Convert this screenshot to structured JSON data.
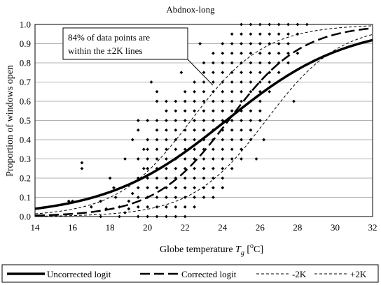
{
  "chart_data": {
    "type": "scatter",
    "title": "Abdnox-long",
    "xlabel": {
      "prefix": "Globe temperature ",
      "var": "T",
      "sub": "g",
      "unit_pre": " [",
      "deg": "o",
      "unit_post": "C]"
    },
    "ylabel": "Proportion of windows open",
    "xlim": [
      14,
      32
    ],
    "ylim": [
      0.0,
      1.0
    ],
    "xticks": [
      "14",
      "16",
      "18",
      "20",
      "22",
      "24",
      "26",
      "28",
      "30",
      "32"
    ],
    "yticks": [
      "0.0",
      "0.1",
      "0.2",
      "0.3",
      "0.4",
      "0.5",
      "0.6",
      "0.7",
      "0.8",
      "0.9",
      "1.0"
    ],
    "grid": "horizontal",
    "annotation": [
      "84% of data points are",
      "within the ±2K lines"
    ],
    "legend_position": "bottom",
    "series": [
      {
        "name": "Uncorrected logit",
        "kind": "logistic",
        "a": -7.5,
        "b": 0.31
      },
      {
        "name": "Corrected logit",
        "kind": "logistic",
        "a": -12.4,
        "b": 0.51
      },
      {
        "name": "-2K",
        "kind": "logistic",
        "a": -11.38,
        "b": 0.51
      },
      {
        "name": "+2K",
        "kind": "logistic",
        "a": -13.42,
        "b": 0.51
      }
    ],
    "scatter_points": [
      [
        15.8,
        0.08
      ],
      [
        16.0,
        0.08
      ],
      [
        16.5,
        0.28
      ],
      [
        16.5,
        0.25
      ],
      [
        17.0,
        0.05
      ],
      [
        17.5,
        0.0
      ],
      [
        17.5,
        0.08
      ],
      [
        17.8,
        0.04
      ],
      [
        18.0,
        0.2
      ],
      [
        18.2,
        0.15
      ],
      [
        18.3,
        0.1
      ],
      [
        18.5,
        0.05
      ],
      [
        18.5,
        0.0
      ],
      [
        18.8,
        0.02
      ],
      [
        18.8,
        0.3
      ],
      [
        19.0,
        0.04
      ],
      [
        19.0,
        0.08
      ],
      [
        19.2,
        0.12
      ],
      [
        19.5,
        0.0
      ],
      [
        19.5,
        0.05
      ],
      [
        19.5,
        0.1
      ],
      [
        19.5,
        0.15
      ],
      [
        19.5,
        0.2
      ],
      [
        19.5,
        0.3
      ],
      [
        19.5,
        0.45
      ],
      [
        19.5,
        0.5
      ],
      [
        19.8,
        0.25
      ],
      [
        19.8,
        0.35
      ],
      [
        20.0,
        0.0
      ],
      [
        20.0,
        0.05
      ],
      [
        20.0,
        0.1
      ],
      [
        20.0,
        0.15
      ],
      [
        20.0,
        0.2
      ],
      [
        20.0,
        0.25
      ],
      [
        20.0,
        0.3
      ],
      [
        20.0,
        0.35
      ],
      [
        20.0,
        0.4
      ],
      [
        20.0,
        0.5
      ],
      [
        20.5,
        0.0
      ],
      [
        20.5,
        0.05
      ],
      [
        20.5,
        0.1
      ],
      [
        20.5,
        0.15
      ],
      [
        20.5,
        0.2
      ],
      [
        20.5,
        0.25
      ],
      [
        20.5,
        0.3
      ],
      [
        20.5,
        0.35
      ],
      [
        20.5,
        0.4
      ],
      [
        20.5,
        0.45
      ],
      [
        20.5,
        0.5
      ],
      [
        20.5,
        0.6
      ],
      [
        20.5,
        0.65
      ],
      [
        21.0,
        0.0
      ],
      [
        21.0,
        0.05
      ],
      [
        21.0,
        0.1
      ],
      [
        21.0,
        0.15
      ],
      [
        21.0,
        0.2
      ],
      [
        21.0,
        0.25
      ],
      [
        21.0,
        0.3
      ],
      [
        21.0,
        0.35
      ],
      [
        21.0,
        0.4
      ],
      [
        21.0,
        0.45
      ],
      [
        21.0,
        0.5
      ],
      [
        21.0,
        0.55
      ],
      [
        21.0,
        0.6
      ],
      [
        21.5,
        0.0
      ],
      [
        21.5,
        0.05
      ],
      [
        21.5,
        0.1
      ],
      [
        21.5,
        0.15
      ],
      [
        21.5,
        0.2
      ],
      [
        21.5,
        0.25
      ],
      [
        21.5,
        0.3
      ],
      [
        21.5,
        0.35
      ],
      [
        21.5,
        0.4
      ],
      [
        21.5,
        0.45
      ],
      [
        21.5,
        0.5
      ],
      [
        21.5,
        0.55
      ],
      [
        21.5,
        0.6
      ],
      [
        22.0,
        0.0
      ],
      [
        22.0,
        0.05
      ],
      [
        22.0,
        0.1
      ],
      [
        22.0,
        0.15
      ],
      [
        22.0,
        0.2
      ],
      [
        22.0,
        0.25
      ],
      [
        22.0,
        0.3
      ],
      [
        22.0,
        0.35
      ],
      [
        22.0,
        0.4
      ],
      [
        22.0,
        0.45
      ],
      [
        22.0,
        0.5
      ],
      [
        22.0,
        0.55
      ],
      [
        22.0,
        0.6
      ],
      [
        22.0,
        0.65
      ],
      [
        22.5,
        0.05
      ],
      [
        22.5,
        0.1
      ],
      [
        22.5,
        0.15
      ],
      [
        22.5,
        0.2
      ],
      [
        22.5,
        0.25
      ],
      [
        22.5,
        0.3
      ],
      [
        22.5,
        0.35
      ],
      [
        22.5,
        0.4
      ],
      [
        22.5,
        0.45
      ],
      [
        22.5,
        0.5
      ],
      [
        22.5,
        0.55
      ],
      [
        22.5,
        0.6
      ],
      [
        22.5,
        0.65
      ],
      [
        22.5,
        0.7
      ],
      [
        23.0,
        0.1
      ],
      [
        23.0,
        0.15
      ],
      [
        23.0,
        0.2
      ],
      [
        23.0,
        0.25
      ],
      [
        23.0,
        0.3
      ],
      [
        23.0,
        0.35
      ],
      [
        23.0,
        0.4
      ],
      [
        23.0,
        0.45
      ],
      [
        23.0,
        0.5
      ],
      [
        23.0,
        0.55
      ],
      [
        23.0,
        0.6
      ],
      [
        23.0,
        0.65
      ],
      [
        23.0,
        0.7
      ],
      [
        23.0,
        0.75
      ],
      [
        23.0,
        0.8
      ],
      [
        23.5,
        0.1
      ],
      [
        23.5,
        0.15
      ],
      [
        23.5,
        0.2
      ],
      [
        23.5,
        0.25
      ],
      [
        23.5,
        0.3
      ],
      [
        23.5,
        0.35
      ],
      [
        23.5,
        0.4
      ],
      [
        23.5,
        0.45
      ],
      [
        23.5,
        0.5
      ],
      [
        23.5,
        0.55
      ],
      [
        23.5,
        0.6
      ],
      [
        23.5,
        0.65
      ],
      [
        23.5,
        0.7
      ],
      [
        23.5,
        0.75
      ],
      [
        23.5,
        0.8
      ],
      [
        23.5,
        0.85
      ],
      [
        24.0,
        0.15
      ],
      [
        24.0,
        0.2
      ],
      [
        24.0,
        0.25
      ],
      [
        24.0,
        0.3
      ],
      [
        24.0,
        0.35
      ],
      [
        24.0,
        0.4
      ],
      [
        24.0,
        0.45
      ],
      [
        24.0,
        0.5
      ],
      [
        24.0,
        0.55
      ],
      [
        24.0,
        0.6
      ],
      [
        24.0,
        0.65
      ],
      [
        24.0,
        0.7
      ],
      [
        24.0,
        0.75
      ],
      [
        24.0,
        0.8
      ],
      [
        24.0,
        0.85
      ],
      [
        24.0,
        0.9
      ],
      [
        24.5,
        0.25
      ],
      [
        24.5,
        0.3
      ],
      [
        24.5,
        0.35
      ],
      [
        24.5,
        0.4
      ],
      [
        24.5,
        0.45
      ],
      [
        24.5,
        0.5
      ],
      [
        24.5,
        0.55
      ],
      [
        24.5,
        0.6
      ],
      [
        24.5,
        0.65
      ],
      [
        24.5,
        0.7
      ],
      [
        24.5,
        0.75
      ],
      [
        24.5,
        0.8
      ],
      [
        24.5,
        0.85
      ],
      [
        24.5,
        0.9
      ],
      [
        24.5,
        0.95
      ],
      [
        25.0,
        0.3
      ],
      [
        25.0,
        0.35
      ],
      [
        25.0,
        0.4
      ],
      [
        25.0,
        0.45
      ],
      [
        25.0,
        0.5
      ],
      [
        25.0,
        0.55
      ],
      [
        25.0,
        0.6
      ],
      [
        25.0,
        0.65
      ],
      [
        25.0,
        0.7
      ],
      [
        25.0,
        0.75
      ],
      [
        25.0,
        0.8
      ],
      [
        25.0,
        0.85
      ],
      [
        25.0,
        0.9
      ],
      [
        25.0,
        0.95
      ],
      [
        25.0,
        1.0
      ],
      [
        25.5,
        0.4
      ],
      [
        25.5,
        0.45
      ],
      [
        25.5,
        0.5
      ],
      [
        25.5,
        0.55
      ],
      [
        25.5,
        0.6
      ],
      [
        25.5,
        0.65
      ],
      [
        25.5,
        0.7
      ],
      [
        25.5,
        0.75
      ],
      [
        25.5,
        0.8
      ],
      [
        25.5,
        0.85
      ],
      [
        25.5,
        0.9
      ],
      [
        25.5,
        0.95
      ],
      [
        25.5,
        1.0
      ],
      [
        26.0,
        0.5
      ],
      [
        26.0,
        0.55
      ],
      [
        26.0,
        0.6
      ],
      [
        26.0,
        0.65
      ],
      [
        26.0,
        0.7
      ],
      [
        26.0,
        0.75
      ],
      [
        26.0,
        0.8
      ],
      [
        26.0,
        0.85
      ],
      [
        26.0,
        0.9
      ],
      [
        26.0,
        0.95
      ],
      [
        26.0,
        1.0
      ],
      [
        26.5,
        0.65
      ],
      [
        26.5,
        0.7
      ],
      [
        26.5,
        0.75
      ],
      [
        26.5,
        0.8
      ],
      [
        26.5,
        0.85
      ],
      [
        26.5,
        0.9
      ],
      [
        26.5,
        0.95
      ],
      [
        26.5,
        1.0
      ],
      [
        27.0,
        0.75
      ],
      [
        27.0,
        0.8
      ],
      [
        27.0,
        0.85
      ],
      [
        27.0,
        0.9
      ],
      [
        27.0,
        0.95
      ],
      [
        27.0,
        1.0
      ],
      [
        27.5,
        0.8
      ],
      [
        27.5,
        0.85
      ],
      [
        27.5,
        0.9
      ],
      [
        27.5,
        0.95
      ],
      [
        27.5,
        1.0
      ],
      [
        27.8,
        0.6
      ],
      [
        28.0,
        0.85
      ],
      [
        28.0,
        0.95
      ],
      [
        28.0,
        1.0
      ],
      [
        28.5,
        1.0
      ],
      [
        26.2,
        0.4
      ],
      [
        25.8,
        0.3
      ],
      [
        22.8,
        0.9
      ],
      [
        21.8,
        0.75
      ],
      [
        20.2,
        0.7
      ],
      [
        19.2,
        0.4
      ]
    ]
  }
}
